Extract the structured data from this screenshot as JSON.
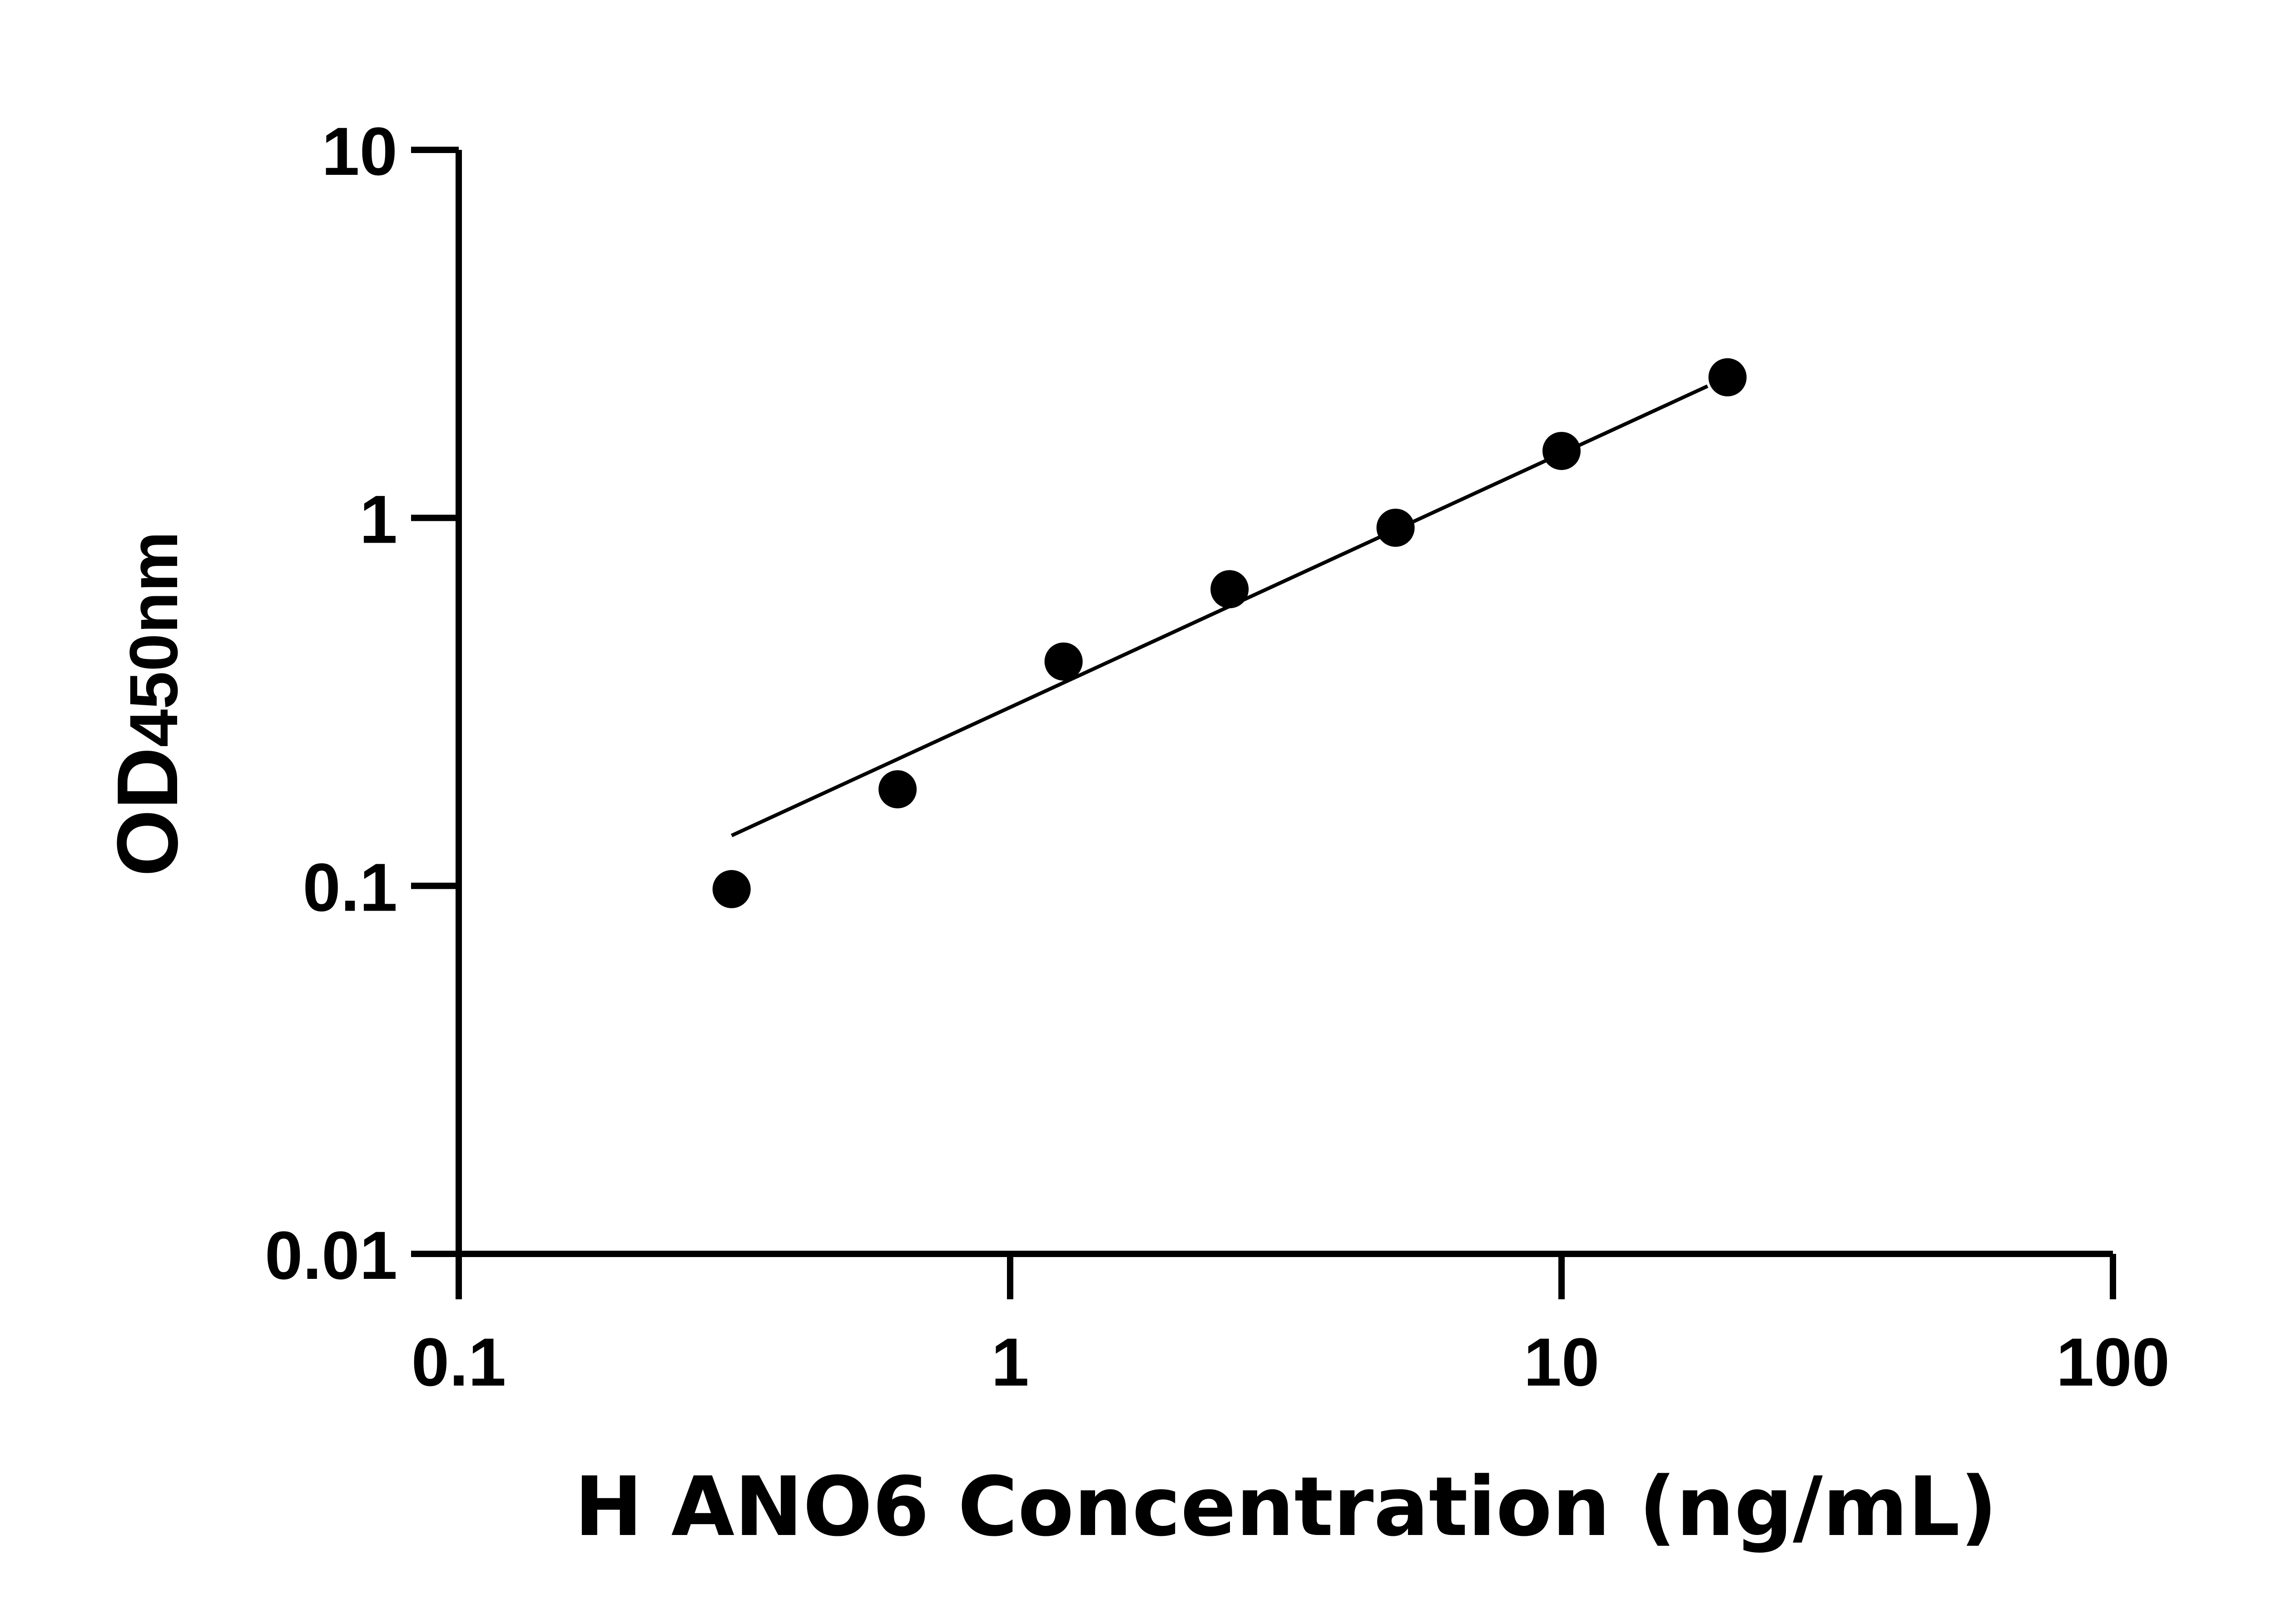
{
  "chart_data": {
    "type": "scatter",
    "xlabel": "H ANO6 Concentration (ng/mL)",
    "ylabel_main": "OD",
    "ylabel_sub": "450nm",
    "x_scale": "log",
    "y_scale": "log",
    "xlim": [
      0.1,
      100
    ],
    "ylim": [
      0.01,
      10
    ],
    "x_ticks": [
      "0.1",
      "1",
      "10",
      "100"
    ],
    "y_ticks": [
      "0.01",
      "0.1",
      "1",
      "10"
    ],
    "grid": false,
    "legend": "none",
    "points": {
      "x": [
        0.3125,
        0.625,
        1.25,
        2.5,
        5,
        10,
        20
      ],
      "y": [
        0.098,
        0.183,
        0.407,
        0.64,
        0.94,
        1.52,
        2.41
      ]
    },
    "fit_line": {
      "x": [
        0.3125,
        18.4
      ],
      "y": [
        0.137,
        2.28
      ]
    },
    "colors": {
      "marker": "#000000",
      "line": "#000000",
      "axis": "#000000"
    }
  }
}
